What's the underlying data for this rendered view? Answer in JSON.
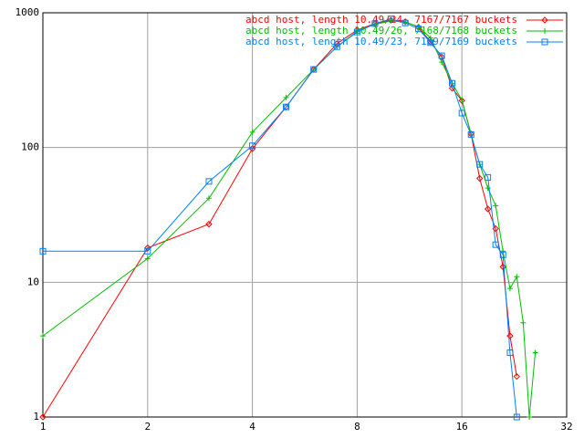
{
  "chart_data": {
    "type": "line",
    "xscale": "log",
    "yscale": "log",
    "grid": true,
    "legend": "top-right",
    "xlim": [
      1,
      32
    ],
    "ylim": [
      1,
      1000
    ],
    "xticks": [
      1,
      2,
      4,
      8,
      16,
      32
    ],
    "yticks": [
      1,
      10,
      100,
      1000
    ],
    "series": [
      {
        "name": "abcd host, length 10.49/24, 7167/7167 buckets",
        "color": "#ff0000",
        "marker": "diamond",
        "x": [
          1,
          2,
          3,
          4,
          5,
          6,
          7,
          8,
          9,
          10,
          11,
          12,
          13,
          14,
          15,
          16,
          17,
          18,
          19,
          20,
          21,
          22,
          23
        ],
        "values": [
          1,
          18,
          27,
          98,
          200,
          380,
          590,
          745,
          830,
          880,
          860,
          780,
          610,
          470,
          275,
          223,
          126,
          59,
          35,
          25,
          13,
          4,
          2
        ]
      },
      {
        "name": "abcd host, length 10.49/26, 7168/7168 buckets",
        "color": "#00c000",
        "marker": "plus",
        "x": [
          1,
          2,
          3,
          4,
          5,
          6,
          7,
          8,
          9,
          10,
          11,
          12,
          13,
          14,
          15,
          16,
          17,
          18,
          19,
          20,
          21,
          22,
          23,
          24,
          25,
          26
        ],
        "values": [
          4,
          15,
          42,
          130,
          235,
          380,
          560,
          730,
          820,
          870,
          850,
          790,
          650,
          430,
          300,
          225,
          125,
          75,
          50,
          37,
          17,
          9,
          11,
          5,
          1,
          3
        ]
      },
      {
        "name": "abcd host, length 10.49/23, 7169/7169 buckets",
        "color": "#0080ff",
        "marker": "square",
        "x": [
          1,
          2,
          3,
          4,
          5,
          6,
          7,
          8,
          9,
          10,
          11,
          12,
          13,
          14,
          15,
          16,
          17,
          18,
          19,
          20,
          21,
          22,
          23
        ],
        "values": [
          17,
          17,
          56,
          103,
          200,
          380,
          560,
          720,
          830,
          900,
          840,
          760,
          600,
          480,
          300,
          180,
          125,
          75,
          60,
          19,
          16,
          3,
          1
        ]
      }
    ]
  }
}
